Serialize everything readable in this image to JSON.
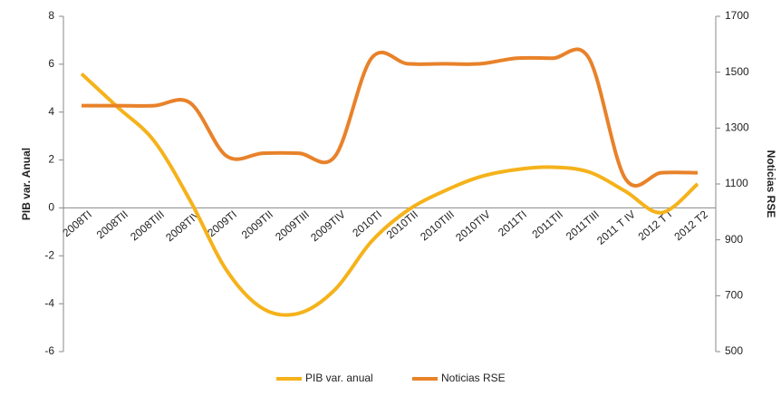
{
  "chart_data": {
    "type": "line",
    "categories": [
      "2008TI",
      "2008TII",
      "2008TIII",
      "2008TIV",
      "2009TI",
      "2009TII",
      "2009TIII",
      "2009TIV",
      "2010TI",
      "2010TII",
      "2010TIII",
      "2010TIV",
      "2011TI",
      "2011TII",
      "2011TIII",
      "2011 T IV",
      "2012 T I",
      "2012 T2"
    ],
    "series": [
      {
        "name": "PIB var. anual",
        "color": "#f5b21b",
        "values": [
          5.6,
          4.2,
          2.8,
          0.3,
          -2.6,
          -4.2,
          -4.4,
          -3.4,
          -1.4,
          -0.1,
          0.7,
          1.3,
          1.6,
          1.7,
          1.5,
          0.7,
          -0.2,
          1.0
        ]
      },
      {
        "name": "Noticias RSE",
        "color": "#e8822a",
        "axis": "y2",
        "values": [
          1380,
          1380,
          1380,
          1390,
          1200,
          1210,
          1210,
          1200,
          1550,
          1530,
          1530,
          1530,
          1550,
          1550,
          1550,
          1120,
          1140,
          1140
        ]
      }
    ],
    "y_label": "PIB var. Anual",
    "y2_label": "Noticias RSE",
    "ylim": [
      -6,
      8
    ],
    "yticks": [
      -6,
      -4,
      -2,
      0,
      2,
      4,
      6,
      8
    ],
    "y2lim": [
      500,
      1700
    ],
    "y2ticks": [
      500,
      700,
      900,
      1100,
      1300,
      1500,
      1700
    ],
    "smooth": true
  }
}
